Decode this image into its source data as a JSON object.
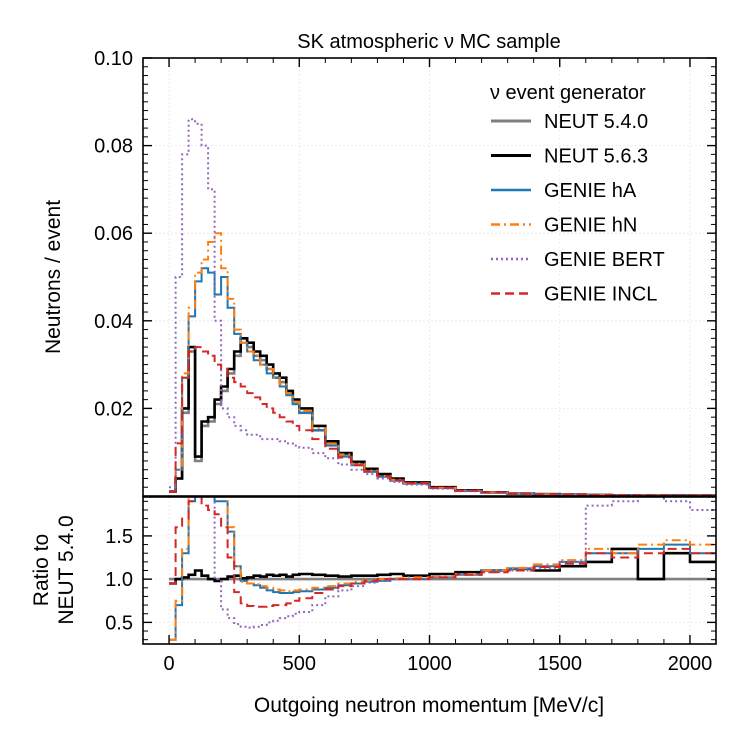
{
  "chart_data": {
    "type": "line",
    "title": "SK atmospheric ν MC sample",
    "xlabel": "Outgoing neutron momentum [MeV/c]",
    "xlim": [
      -100,
      2100
    ],
    "xticks": [
      "0",
      "500",
      "1000",
      "1500",
      "2000"
    ],
    "grid": true,
    "legend": {
      "title": "ν event generator",
      "placement": "top-right"
    },
    "top_panel": {
      "ylabel": "Neutrons / event",
      "ylim": [
        0,
        0.1
      ],
      "yticks": [
        "0.02",
        "0.04",
        "0.06",
        "0.08",
        "0.10"
      ]
    },
    "bottom_panel": {
      "ylabel_line1": "Ratio to",
      "ylabel_line2": "NEUT 5.4.0",
      "ylim": [
        0.25,
        1.95
      ],
      "yticks": [
        "0.5",
        "1.0",
        "1.5"
      ]
    },
    "series": [
      {
        "name": "NEUT 5.4.0",
        "color": "#7f7f7f",
        "style": "solid",
        "width": 2.6,
        "x": [
          0,
          25,
          50,
          75,
          100,
          125,
          150,
          175,
          200,
          225,
          250,
          275,
          300,
          325,
          350,
          375,
          400,
          425,
          450,
          475,
          500,
          550,
          600,
          650,
          700,
          750,
          800,
          850,
          900,
          1000,
          1100,
          1200,
          1300,
          1400,
          1500,
          1600,
          1700,
          1800,
          1900,
          2000
        ],
        "y": [
          0.001,
          0.004,
          0.019,
          0.033,
          0.008,
          0.016,
          0.017,
          0.021,
          0.024,
          0.028,
          0.032,
          0.036,
          0.034,
          0.032,
          0.031,
          0.029,
          0.027,
          0.026,
          0.0235,
          0.021,
          0.019,
          0.015,
          0.012,
          0.0095,
          0.0075,
          0.006,
          0.0048,
          0.0038,
          0.003,
          0.0019,
          0.0012,
          0.0008,
          0.0005,
          0.0004,
          0.0003,
          0.0002,
          0.00015,
          0.0001,
          0.0001,
          8e-05
        ],
        "ratio": [
          1,
          1,
          1,
          1,
          1,
          1,
          1,
          1,
          1,
          1,
          1,
          1,
          1,
          1,
          1,
          1,
          1,
          1,
          1,
          1,
          1,
          1,
          1,
          1,
          1,
          1,
          1,
          1,
          1,
          1,
          1,
          1,
          1,
          1,
          1,
          1,
          1,
          1,
          1,
          1
        ]
      },
      {
        "name": "NEUT 5.6.3",
        "color": "#000000",
        "style": "solid",
        "width": 2.6,
        "x": [
          0,
          25,
          50,
          75,
          100,
          125,
          150,
          175,
          200,
          225,
          250,
          275,
          300,
          325,
          350,
          375,
          400,
          425,
          450,
          475,
          500,
          550,
          600,
          650,
          700,
          750,
          800,
          850,
          900,
          1000,
          1100,
          1200,
          1300,
          1400,
          1500,
          1600,
          1700,
          1800,
          1900,
          2000
        ],
        "y": [
          0.001,
          0.004,
          0.02,
          0.034,
          0.009,
          0.017,
          0.018,
          0.022,
          0.025,
          0.029,
          0.033,
          0.036,
          0.035,
          0.033,
          0.032,
          0.03,
          0.028,
          0.027,
          0.024,
          0.022,
          0.02,
          0.016,
          0.0125,
          0.0098,
          0.0078,
          0.0062,
          0.005,
          0.004,
          0.0031,
          0.002,
          0.0013,
          0.00085,
          0.00055,
          0.00042,
          0.00032,
          0.00022,
          0.00016,
          0.00011,
          0.0001,
          9e-05
        ],
        "ratio": [
          0.95,
          1.0,
          1.02,
          1.05,
          1.1,
          1.04,
          1.0,
          0.98,
          1.0,
          1.03,
          1.04,
          1.01,
          1.02,
          1.04,
          1.03,
          1.05,
          1.04,
          1.05,
          1.03,
          1.05,
          1.06,
          1.05,
          1.04,
          1.03,
          1.04,
          1.04,
          1.05,
          1.06,
          1.04,
          1.06,
          1.08,
          1.1,
          1.12,
          1.1,
          1.15,
          1.2,
          1.35,
          1.0,
          1.3,
          1.2
        ]
      },
      {
        "name": "GENIE hA",
        "color": "#1f77b4",
        "style": "solid",
        "width": 2.0,
        "x": [
          0,
          25,
          50,
          75,
          100,
          125,
          150,
          175,
          200,
          225,
          250,
          275,
          300,
          325,
          350,
          375,
          400,
          425,
          450,
          475,
          500,
          550,
          600,
          650,
          700,
          750,
          800,
          850,
          900,
          1000,
          1100,
          1200,
          1300,
          1400,
          1500,
          1600,
          1700,
          1800,
          1900,
          2000
        ],
        "y": [
          0.001,
          0.006,
          0.027,
          0.041,
          0.049,
          0.052,
          0.051,
          0.046,
          0.05,
          0.043,
          0.037,
          0.035,
          0.033,
          0.031,
          0.03,
          0.028,
          0.027,
          0.025,
          0.023,
          0.021,
          0.019,
          0.015,
          0.0115,
          0.009,
          0.007,
          0.0055,
          0.0044,
          0.0035,
          0.0028,
          0.0018,
          0.0012,
          0.0008,
          0.0005,
          0.0004,
          0.0003,
          0.0002,
          0.00015,
          0.0001,
          0.0001,
          9e-05
        ],
        "ratio": [
          0.3,
          0.7,
          1.3,
          1.9,
          2.2,
          2.2,
          2.1,
          1.9,
          1.9,
          1.55,
          1.15,
          0.98,
          0.95,
          0.93,
          0.9,
          0.87,
          0.85,
          0.84,
          0.84,
          0.85,
          0.86,
          0.88,
          0.9,
          0.93,
          0.95,
          0.97,
          0.98,
          1.0,
          1.0,
          1.02,
          1.05,
          1.1,
          1.12,
          1.15,
          1.2,
          1.3,
          1.3,
          1.35,
          1.4,
          1.3
        ]
      },
      {
        "name": "GENIE hN",
        "color": "#ff7f0e",
        "style": "dashdot",
        "width": 2.0,
        "x": [
          0,
          25,
          50,
          75,
          100,
          125,
          150,
          175,
          200,
          225,
          250,
          275,
          300,
          325,
          350,
          375,
          400,
          425,
          450,
          475,
          500,
          550,
          600,
          650,
          700,
          750,
          800,
          850,
          900,
          1000,
          1100,
          1200,
          1300,
          1400,
          1500,
          1600,
          1700,
          1800,
          1900,
          2000
        ],
        "y": [
          0.001,
          0.006,
          0.028,
          0.043,
          0.051,
          0.054,
          0.058,
          0.06,
          0.052,
          0.045,
          0.038,
          0.035,
          0.033,
          0.032,
          0.03,
          0.029,
          0.027,
          0.0255,
          0.0235,
          0.0215,
          0.0195,
          0.0155,
          0.012,
          0.0095,
          0.0074,
          0.0058,
          0.0046,
          0.0037,
          0.0029,
          0.0019,
          0.00125,
          0.00085,
          0.00055,
          0.00042,
          0.00032,
          0.00022,
          0.00016,
          0.00011,
          0.0001,
          9e-05
        ],
        "ratio": [
          0.3,
          0.75,
          1.35,
          2.2,
          2.3,
          2.2,
          2.3,
          2.5,
          2.1,
          1.6,
          1.15,
          0.97,
          0.95,
          0.94,
          0.92,
          0.9,
          0.88,
          0.87,
          0.86,
          0.87,
          0.88,
          0.9,
          0.92,
          0.95,
          0.97,
          0.98,
          1.0,
          1.01,
          1.02,
          1.03,
          1.06,
          1.1,
          1.13,
          1.17,
          1.22,
          1.35,
          1.3,
          1.4,
          1.45,
          1.4
        ]
      },
      {
        "name": "GENIE BERT",
        "color": "#9467bd",
        "style": "dotted",
        "width": 2.0,
        "x": [
          0,
          25,
          50,
          75,
          100,
          125,
          150,
          175,
          200,
          225,
          250,
          275,
          300,
          325,
          350,
          375,
          400,
          425,
          450,
          475,
          500,
          550,
          600,
          650,
          700,
          750,
          800,
          850,
          900,
          1000,
          1100,
          1200,
          1300,
          1400,
          1500,
          1600,
          1700,
          1800,
          1900,
          2000
        ],
        "y": [
          0.002,
          0.05,
          0.078,
          0.086,
          0.085,
          0.08,
          0.07,
          0.04,
          0.02,
          0.018,
          0.016,
          0.015,
          0.014,
          0.014,
          0.013,
          0.013,
          0.013,
          0.0125,
          0.012,
          0.0115,
          0.011,
          0.0098,
          0.0086,
          0.0072,
          0.006,
          0.005,
          0.004,
          0.0032,
          0.0026,
          0.0017,
          0.0011,
          0.00075,
          0.0005,
          0.00038,
          0.00029,
          0.00025,
          0.0002,
          0.00014,
          0.0001,
          9e-05
        ],
        "ratio": [
          2.5,
          4.0,
          4.5,
          5.0,
          4.2,
          3.5,
          3.0,
          1.0,
          0.65,
          0.55,
          0.48,
          0.45,
          0.44,
          0.45,
          0.47,
          0.5,
          0.52,
          0.55,
          0.57,
          0.6,
          0.62,
          0.7,
          0.8,
          0.87,
          0.92,
          0.96,
          0.98,
          1.0,
          1.0,
          1.02,
          1.05,
          1.08,
          1.1,
          1.13,
          1.2,
          1.85,
          1.9,
          2.0,
          1.9,
          1.8
        ]
      },
      {
        "name": "GENIE INCL",
        "color": "#d62728",
        "style": "dashed",
        "width": 2.0,
        "x": [
          0,
          25,
          50,
          75,
          100,
          125,
          150,
          175,
          200,
          225,
          250,
          275,
          300,
          325,
          350,
          375,
          400,
          425,
          450,
          475,
          500,
          550,
          600,
          650,
          700,
          750,
          800,
          850,
          900,
          1000,
          1100,
          1200,
          1300,
          1400,
          1500,
          1600,
          1700,
          1800,
          1900,
          2000
        ],
        "y": [
          0.001,
          0.012,
          0.027,
          0.033,
          0.034,
          0.033,
          0.032,
          0.03,
          0.029,
          0.027,
          0.026,
          0.025,
          0.0235,
          0.0225,
          0.021,
          0.02,
          0.019,
          0.018,
          0.017,
          0.016,
          0.015,
          0.013,
          0.0108,
          0.0088,
          0.007,
          0.0056,
          0.0045,
          0.0036,
          0.0029,
          0.0019,
          0.00125,
          0.00085,
          0.00055,
          0.00042,
          0.00032,
          0.00023,
          0.00017,
          0.00012,
          0.0001,
          9e-05
        ],
        "ratio": [
          0.95,
          1.6,
          1.7,
          1.9,
          2.0,
          1.85,
          1.8,
          1.75,
          1.6,
          1.25,
          0.85,
          0.72,
          0.69,
          0.68,
          0.68,
          0.69,
          0.7,
          0.7,
          0.72,
          0.75,
          0.78,
          0.84,
          0.88,
          0.92,
          0.95,
          0.98,
          1.0,
          1.0,
          1.0,
          1.02,
          1.05,
          1.08,
          1.1,
          1.14,
          1.18,
          1.3,
          1.25,
          1.3,
          1.35,
          1.3
        ]
      }
    ]
  }
}
